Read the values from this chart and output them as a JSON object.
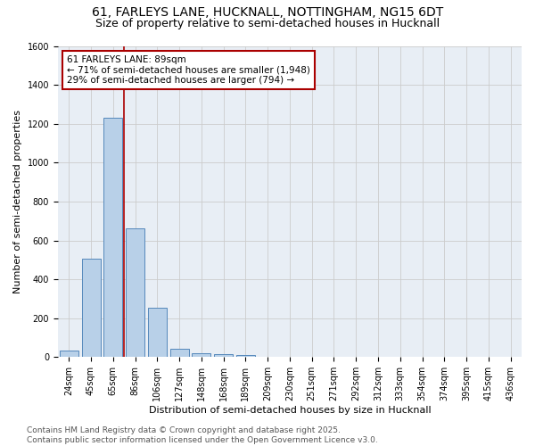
{
  "title_line1": "61, FARLEYS LANE, HUCKNALL, NOTTINGHAM, NG15 6DT",
  "title_line2": "Size of property relative to semi-detached houses in Hucknall",
  "xlabel": "Distribution of semi-detached houses by size in Hucknall",
  "ylabel": "Number of semi-detached properties",
  "bin_labels": [
    "24sqm",
    "45sqm",
    "65sqm",
    "86sqm",
    "106sqm",
    "127sqm",
    "148sqm",
    "168sqm",
    "189sqm",
    "209sqm",
    "230sqm",
    "251sqm",
    "271sqm",
    "292sqm",
    "312sqm",
    "333sqm",
    "354sqm",
    "374sqm",
    "395sqm",
    "415sqm",
    "436sqm"
  ],
  "bin_values": [
    35,
    505,
    1230,
    660,
    255,
    45,
    22,
    15,
    13,
    0,
    0,
    0,
    0,
    0,
    0,
    0,
    0,
    0,
    0,
    0,
    0
  ],
  "bar_color": "#b8d0e8",
  "bar_edge_color": "#5588bb",
  "property_line_color": "#aa0000",
  "annotation_line1": "61 FARLEYS LANE: 89sqm",
  "annotation_line2": "← 71% of semi-detached houses are smaller (1,948)",
  "annotation_line3": "29% of semi-detached houses are larger (794) →",
  "annotation_box_color": "#aa0000",
  "ylim": [
    0,
    1600
  ],
  "yticks": [
    0,
    200,
    400,
    600,
    800,
    1000,
    1200,
    1400,
    1600
  ],
  "grid_color": "#cccccc",
  "bg_color": "#e8eef5",
  "footer": "Contains HM Land Registry data © Crown copyright and database right 2025.\nContains public sector information licensed under the Open Government Licence v3.0.",
  "title_fontsize": 10,
  "subtitle_fontsize": 9,
  "axis_label_fontsize": 8,
  "tick_fontsize": 7,
  "annotation_fontsize": 7.5,
  "footer_fontsize": 6.5
}
